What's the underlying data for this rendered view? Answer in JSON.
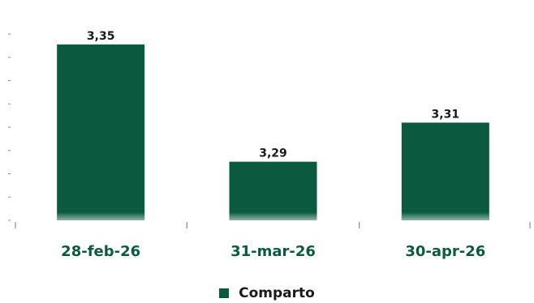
{
  "chart_data": {
    "type": "bar",
    "categories": [
      "28-feb-26",
      "31-mar-26",
      "30-apr-26"
    ],
    "series": [
      {
        "name": "Comparto",
        "values": [
          3.35,
          3.29,
          3.31
        ],
        "labels": [
          "3,35",
          "3,29",
          "3,31"
        ]
      }
    ],
    "title": "",
    "xlabel": "",
    "ylabel": "",
    "ylim": [
      3.26,
      3.36
    ],
    "grid": false,
    "legend_position": "bottom-center",
    "colors": {
      "bar": "#0b5a3f",
      "category_label": "#0b5a3f",
      "axis": "#8a8a8a",
      "text": "#1a1a1a"
    }
  }
}
